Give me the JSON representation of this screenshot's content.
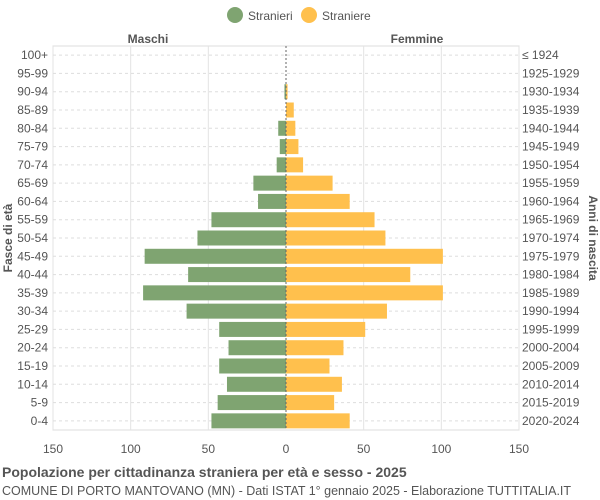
{
  "chart_data": {
    "type": "bar",
    "orientation": "horizontal-pyramid",
    "title": "Popolazione per cittadinanza straniera per età e sesso - 2025",
    "subtitle": "COMUNE DI PORTO MANTOVANO (MN) - Dati ISTAT 1° gennaio 2025 - Elaborazione TUTTITALIA.IT",
    "ylabel_left": "Fasce di età",
    "ylabel_right": "Anni di nascita",
    "left_header": "Maschi",
    "right_header": "Femmine",
    "xlim": [
      -150,
      150
    ],
    "xticks": [
      -150,
      -100,
      -50,
      0,
      50,
      100,
      150
    ],
    "xtick_labels": [
      "150",
      "100",
      "50",
      "0",
      "50",
      "100",
      "150"
    ],
    "grid": true,
    "legend_position": "top",
    "categories": [
      "100+",
      "95-99",
      "90-94",
      "85-89",
      "80-84",
      "75-79",
      "70-74",
      "65-69",
      "60-64",
      "55-59",
      "50-54",
      "45-49",
      "40-44",
      "35-39",
      "30-34",
      "25-29",
      "20-24",
      "15-19",
      "10-14",
      "5-9",
      "0-4"
    ],
    "birth_years": [
      "≤ 1924",
      "1925-1929",
      "1930-1934",
      "1935-1939",
      "1940-1944",
      "1945-1949",
      "1950-1954",
      "1955-1959",
      "1960-1964",
      "1965-1969",
      "1970-1974",
      "1975-1979",
      "1980-1984",
      "1985-1989",
      "1990-1994",
      "1995-1999",
      "2000-2004",
      "2005-2009",
      "2010-2014",
      "2015-2019",
      "2020-2024"
    ],
    "series": [
      {
        "name": "Stranieri",
        "color": "#7fa471",
        "side": "left",
        "values": [
          0,
          0,
          1,
          0,
          5,
          4,
          6,
          21,
          18,
          48,
          57,
          91,
          63,
          92,
          64,
          43,
          37,
          43,
          38,
          44,
          48
        ]
      },
      {
        "name": "Straniere",
        "color": "#ffc04d",
        "side": "right",
        "values": [
          0,
          0,
          1,
          5,
          6,
          8,
          11,
          30,
          41,
          57,
          64,
          101,
          80,
          101,
          65,
          51,
          37,
          28,
          36,
          31,
          41
        ]
      }
    ]
  }
}
